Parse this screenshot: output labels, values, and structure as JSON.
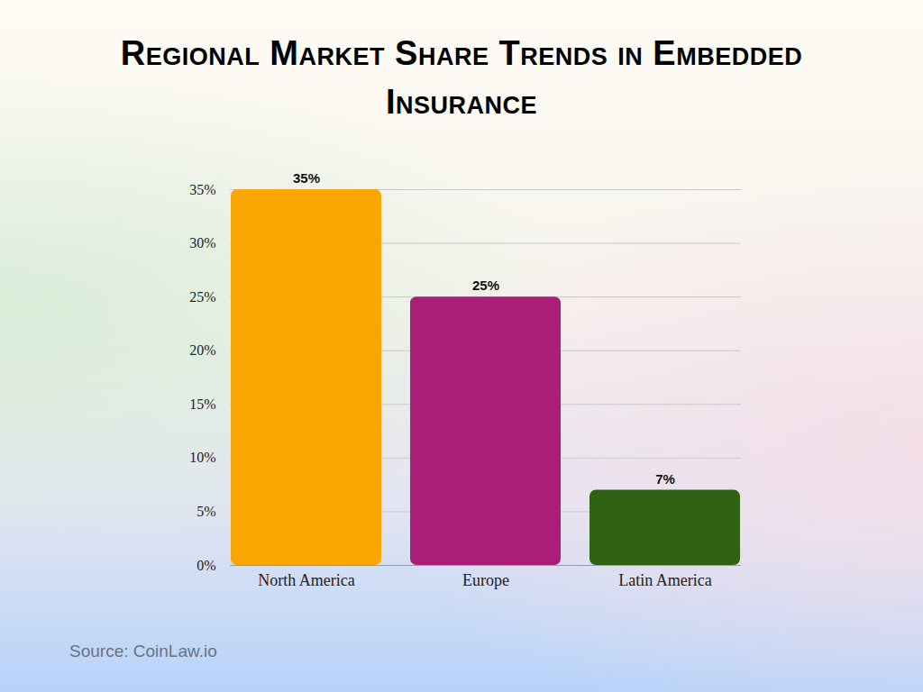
{
  "chart_data": {
    "type": "bar",
    "title": "Regional Market Share Trends in Embedded Insurance",
    "source": "Source: CoinLaw.io",
    "categories": [
      "North America",
      "Europe",
      "Latin America"
    ],
    "values": [
      35,
      25,
      7
    ],
    "value_labels": [
      "35%",
      "25%",
      "7%"
    ],
    "colors": [
      "#f9a602",
      "#aa1e78",
      "#2f6213"
    ],
    "ylim": [
      0,
      35
    ],
    "yticks": [
      {
        "value": 0,
        "label": "0%"
      },
      {
        "value": 5,
        "label": "5%"
      },
      {
        "value": 10,
        "label": "10%"
      },
      {
        "value": 15,
        "label": "15%"
      },
      {
        "value": 20,
        "label": "20%"
      },
      {
        "value": 25,
        "label": "25%"
      },
      {
        "value": 30,
        "label": "30%"
      },
      {
        "value": 35,
        "label": "35%"
      }
    ],
    "grid": true,
    "data_labels": true
  }
}
